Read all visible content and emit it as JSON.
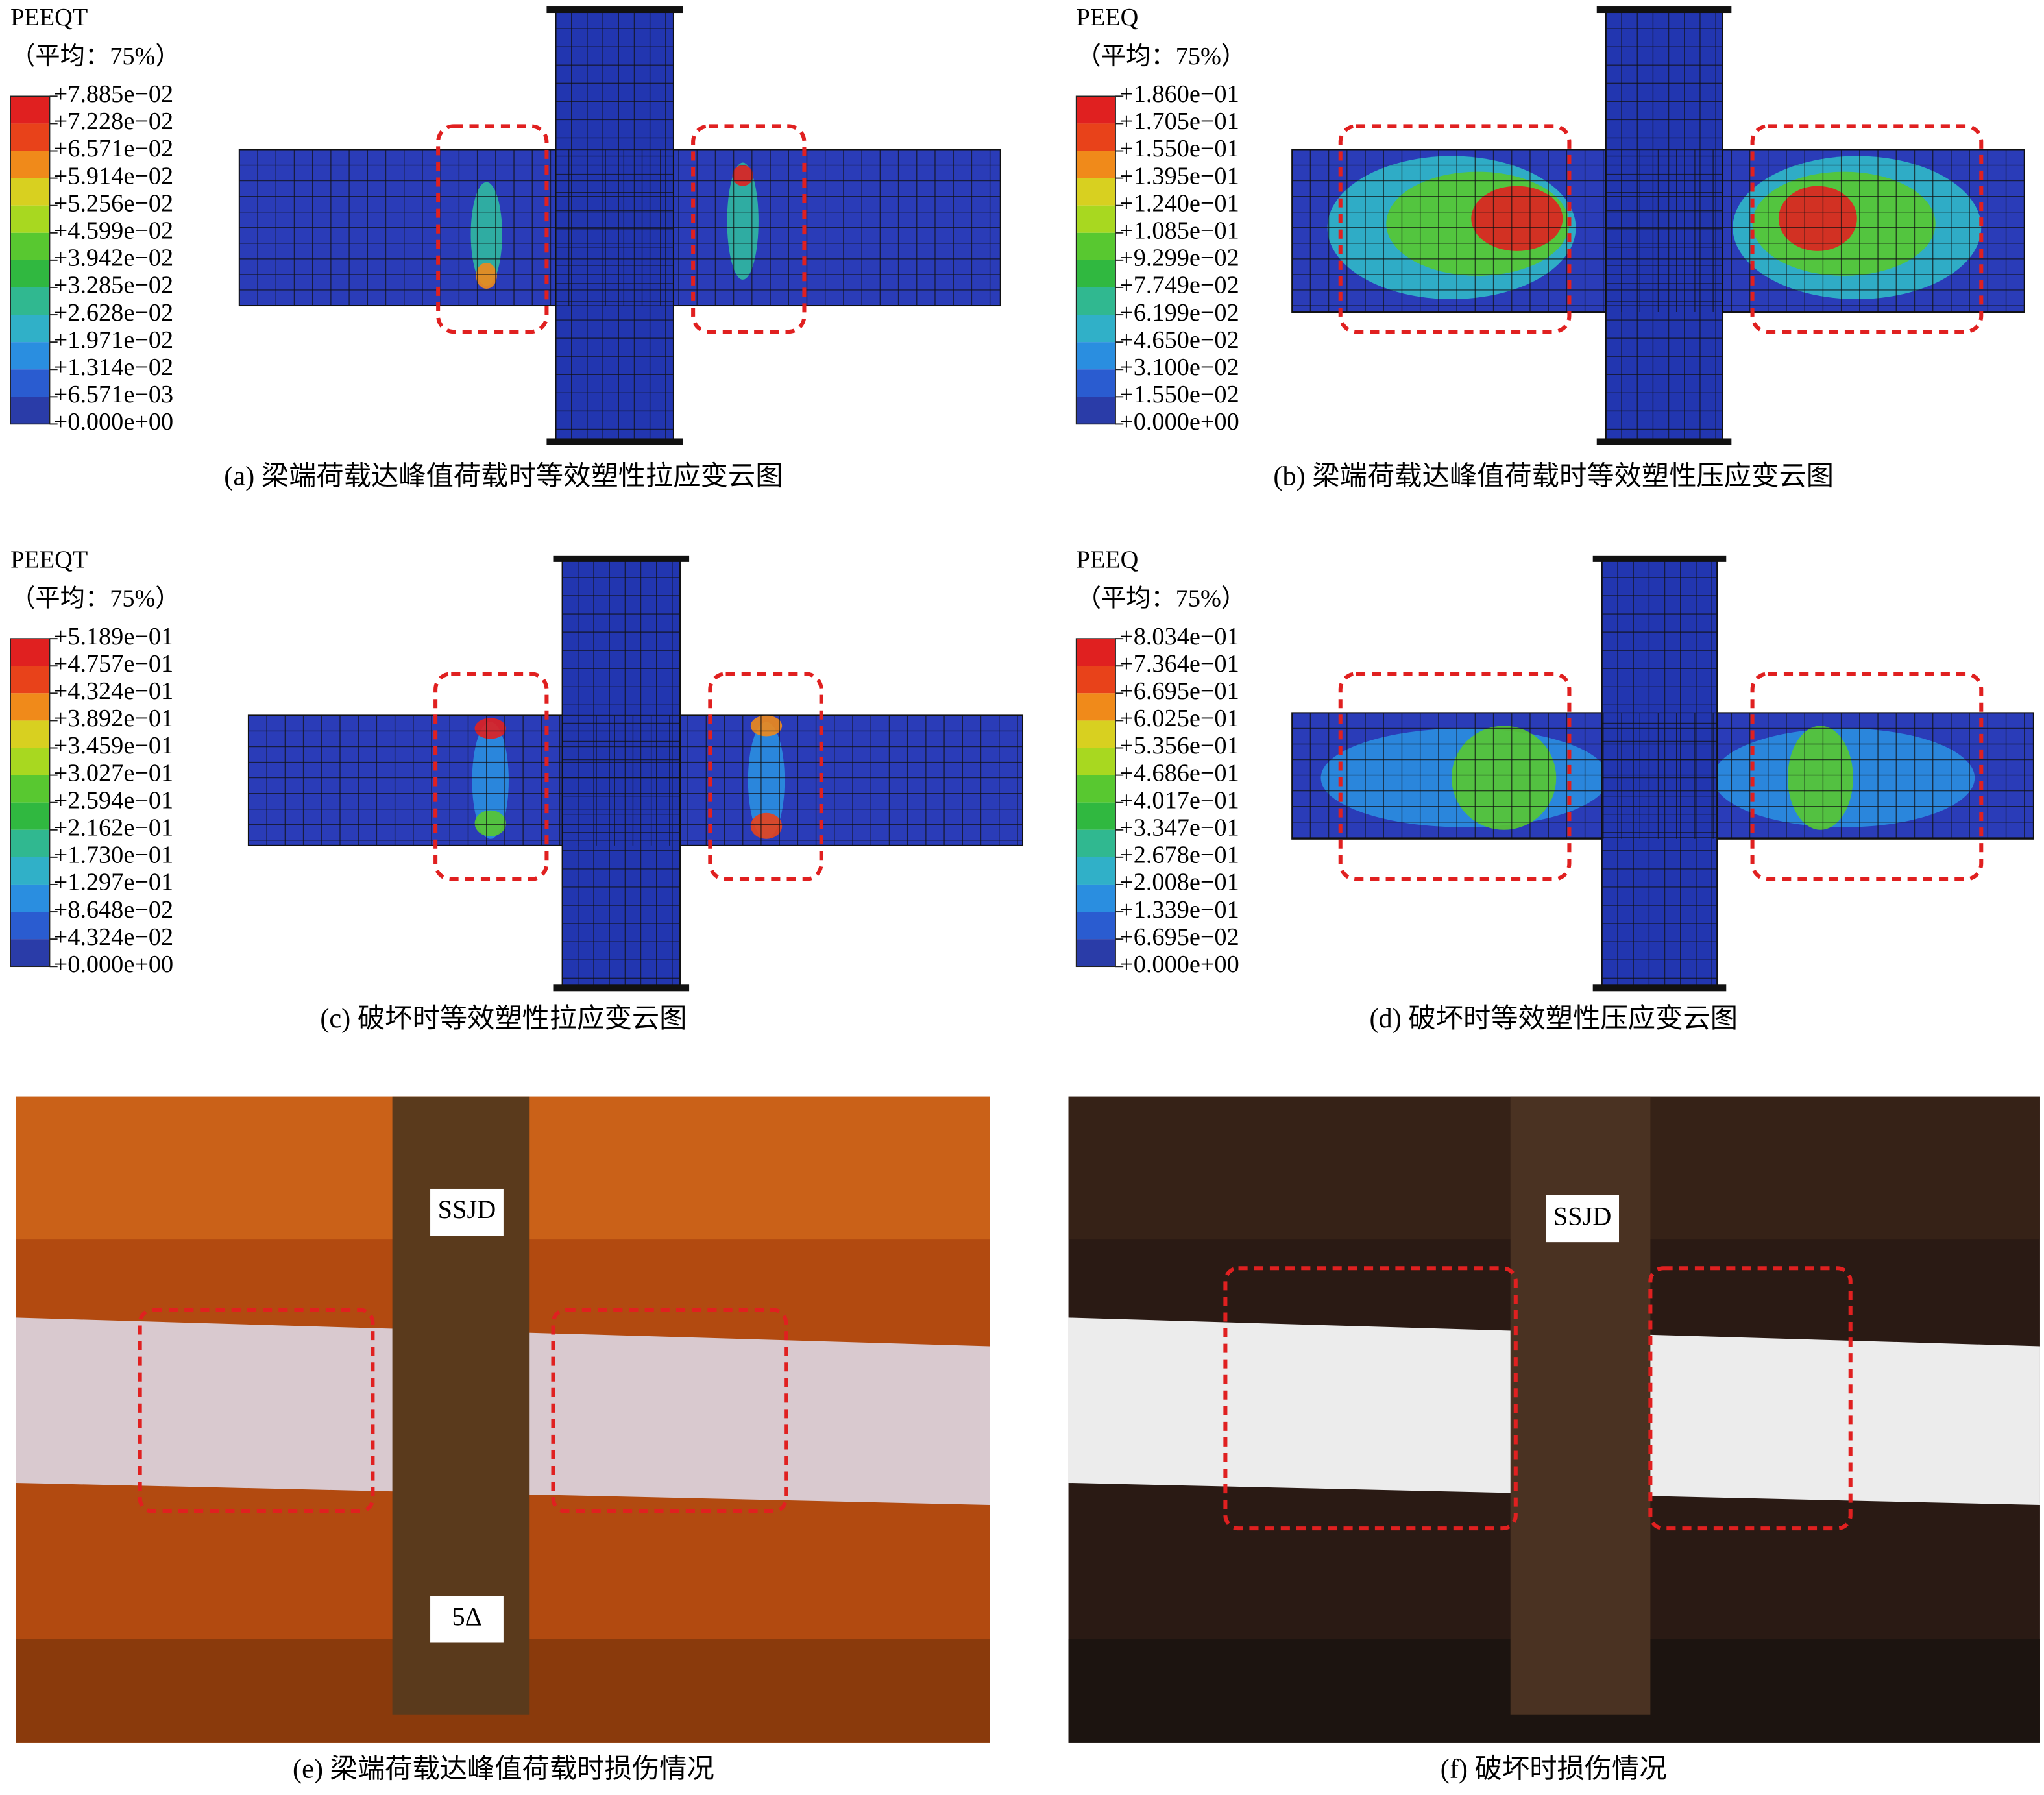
{
  "panels": [
    {
      "legend_title": "PEEQT",
      "legend_subtitle": "（平均：75%）",
      "legend_labels": [
        "+7.885e−02",
        "+7.228e−02",
        "+6.571e−02",
        "+5.914e−02",
        "+5.256e−02",
        "+4.599e−02",
        "+3.942e−02",
        "+3.285e−02",
        "+2.628e−02",
        "+1.971e−02",
        "+1.314e−02",
        "+6.571e−03",
        "+0.000e+00"
      ],
      "caption": "(a) 梁端荷载达峰值荷载时等效塑性拉应变云图"
    },
    {
      "legend_title": "PEEQ",
      "legend_subtitle": "（平均：75%）",
      "legend_labels": [
        "+1.860e−01",
        "+1.705e−01",
        "+1.550e−01",
        "+1.395e−01",
        "+1.240e−01",
        "+1.085e−01",
        "+9.299e−02",
        "+7.749e−02",
        "+6.199e−02",
        "+4.650e−02",
        "+3.100e−02",
        "+1.550e−02",
        "+0.000e+00"
      ],
      "caption": "(b) 梁端荷载达峰值荷载时等效塑性压应变云图"
    },
    {
      "legend_title": "PEEQT",
      "legend_subtitle": "（平均：75%）",
      "legend_labels": [
        "+5.189e−01",
        "+4.757e−01",
        "+4.324e−01",
        "+3.892e−01",
        "+3.459e−01",
        "+3.027e−01",
        "+2.594e−01",
        "+2.162e−01",
        "+1.730e−01",
        "+1.297e−01",
        "+8.648e−02",
        "+4.324e−02",
        "+0.000e+00"
      ],
      "caption": "(c) 破坏时等效塑性拉应变云图"
    },
    {
      "legend_title": "PEEQ",
      "legend_subtitle": "（平均：75%）",
      "legend_labels": [
        "+8.034e−01",
        "+7.364e−01",
        "+6.695e−01",
        "+6.025e−01",
        "+5.356e−01",
        "+4.686e−01",
        "+4.017e−01",
        "+3.347e−01",
        "+2.678e−01",
        "+2.008e−01",
        "+1.339e−01",
        "+6.695e−02",
        "+0.000e+00"
      ],
      "caption": "(d) 破坏时等效塑性压应变云图"
    }
  ],
  "photos": [
    {
      "labels": [
        "SSJD",
        "5Δ"
      ],
      "caption": "(e) 梁端荷载达峰值荷载时损伤情况"
    },
    {
      "labels": [
        "SSJD"
      ],
      "caption": "(f) 破坏时损伤情况"
    }
  ]
}
